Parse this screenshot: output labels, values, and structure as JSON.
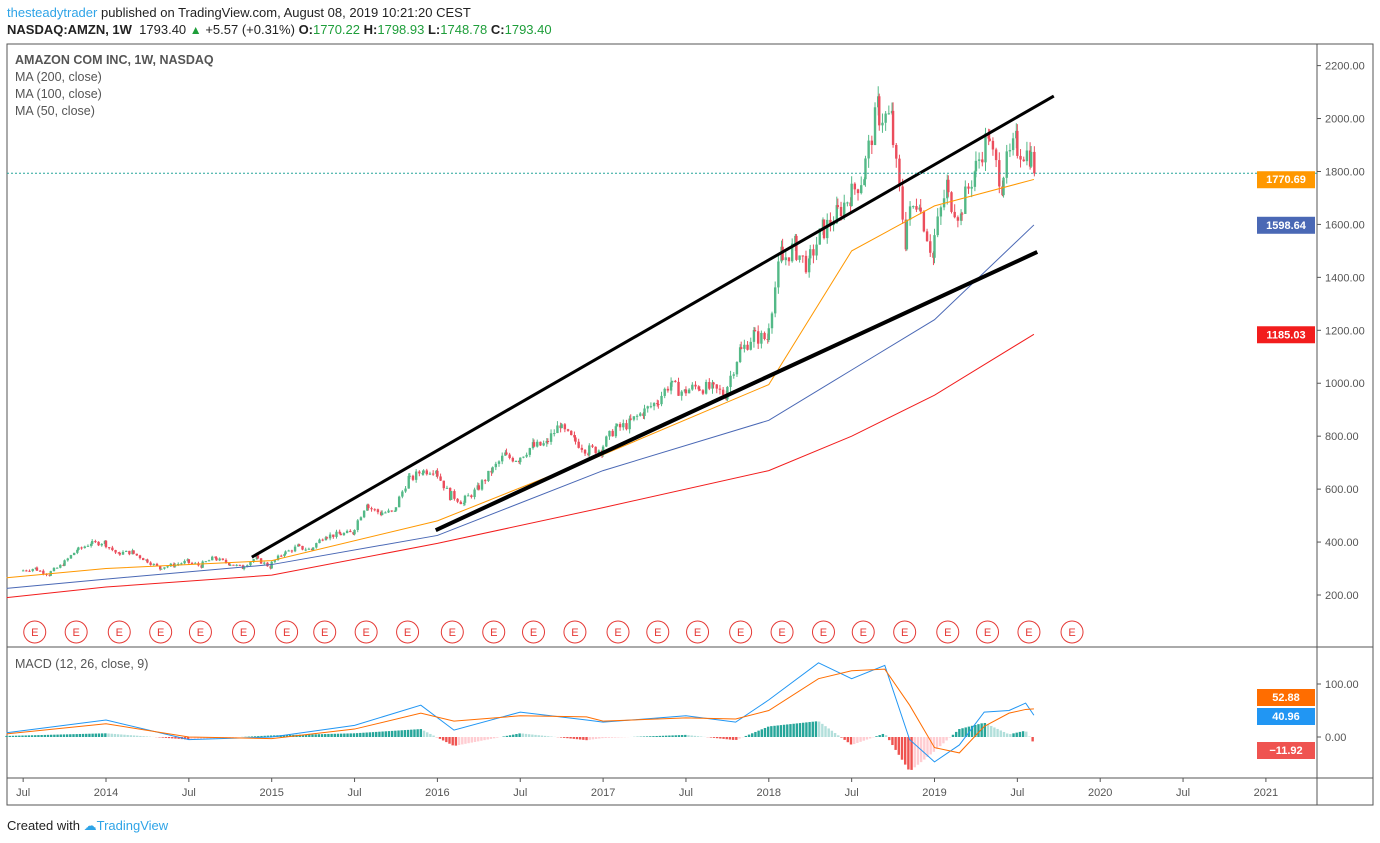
{
  "header": {
    "author": "thesteadytrader",
    "published": "published on TradingView.com, August 08, 2019 10:21:20 CEST",
    "symbol": "NASDAQ:AMZN, 1W",
    "last": "1793.40",
    "change": "+5.57 (+0.31%)",
    "o_label": "O:",
    "o": "1770.22",
    "h_label": "H:",
    "h": "1798.93",
    "l_label": "L:",
    "l": "1748.78",
    "c_label": "C:",
    "c": "1793.40"
  },
  "legend": {
    "title": "AMAZON COM INC, 1W, NASDAQ",
    "ma200": "MA (200, close)",
    "ma100": "MA (100, close)",
    "ma50": "MA (50, close)",
    "macd": "MACD (12, 26, close, 9)"
  },
  "footer": {
    "created": "Created with",
    "brand": "TradingView"
  },
  "colors": {
    "up": "#53b987",
    "down": "#eb4d5c",
    "ma50": "#ff9800",
    "ma100": "#4a68b5",
    "ma200": "#f21d1d",
    "macd": "#2196f3",
    "signal": "#ff6d00",
    "hist_up": "#26a69a",
    "hist_down": "#ef5350"
  },
  "chart_data": {
    "type": "candlestick",
    "price_ticks": [
      "2200.00",
      "2000.00",
      "1800.00",
      "1600.00",
      "1400.00",
      "1200.00",
      "1000.00",
      "800.00",
      "600.00",
      "400.00",
      "200.00"
    ],
    "price_tick_values": [
      2200,
      2000,
      1800,
      1600,
      1400,
      1200,
      1000,
      800,
      600,
      400,
      200
    ],
    "time_ticks": [
      "Jul",
      "2014",
      "Jul",
      "2015",
      "Jul",
      "2016",
      "Jul",
      "2017",
      "Jul",
      "2018",
      "Jul",
      "2019",
      "Jul",
      "2020",
      "Jul",
      "2021"
    ],
    "time_tick_years": [
      2013.5,
      2014,
      2014.5,
      2015,
      2015.5,
      2016,
      2016.5,
      2017,
      2017.5,
      2018,
      2018.5,
      2019,
      2019.5,
      2020,
      2020.5,
      2021
    ],
    "monthly_start": 2013.5,
    "monthly_closes": [
      300,
      280,
      312,
      364,
      393,
      399,
      358,
      362,
      336,
      304,
      312,
      325,
      312,
      339,
      322,
      305,
      338,
      310,
      354,
      380,
      372,
      421,
      429,
      434,
      536,
      512,
      512,
      626,
      665,
      676,
      587,
      552,
      594,
      659,
      722,
      715,
      758,
      769,
      837,
      789,
      750,
      750,
      823,
      845,
      886,
      925,
      994,
      968,
      987,
      980,
      961,
      1105,
      1176,
      1169,
      1450,
      1512,
      1447,
      1566,
      1629,
      1700,
      1777,
      2012,
      2003,
      1598,
      1690,
      1502,
      1718,
      1640,
      1780,
      1926,
      1775,
      1894,
      1867,
      1793
    ],
    "ma_years": [
      2013.4,
      2014,
      2015,
      2016,
      2017,
      2018,
      2018.5,
      2019,
      2019.6
    ],
    "ma50": [
      265,
      300,
      330,
      480,
      730,
      995,
      1500,
      1670,
      1770
    ],
    "ma100": [
      225,
      260,
      315,
      425,
      670,
      860,
      1050,
      1240,
      1598
    ],
    "ma200": [
      190,
      230,
      275,
      395,
      530,
      670,
      800,
      955,
      1185
    ],
    "labels": {
      "ma50": "1770.69",
      "ma100": "1598.64",
      "ma200": "1185.03"
    },
    "trendlines": [
      {
        "from": [
          2014.88,
          343
        ],
        "to": [
          2019.72,
          2085
        ]
      },
      {
        "from": [
          2015.99,
          445
        ],
        "to": [
          2019.62,
          1496
        ]
      }
    ],
    "earnings_label": "E",
    "earnings_years": [
      2013.57,
      2013.82,
      2014.08,
      2014.33,
      2014.57,
      2014.83,
      2015.09,
      2015.32,
      2015.57,
      2015.82,
      2016.09,
      2016.34,
      2016.58,
      2016.83,
      2017.09,
      2017.33,
      2017.57,
      2017.83,
      2018.08,
      2018.33,
      2018.57,
      2018.82,
      2019.08,
      2019.32,
      2019.57,
      2019.83
    ],
    "macd": {
      "ticks": [
        "100.00",
        "0.00"
      ],
      "tick_values": [
        100,
        0
      ],
      "years": [
        2013.4,
        2014,
        2014.5,
        2015,
        2015.5,
        2015.9,
        2016.1,
        2016.5,
        2016.9,
        2017,
        2017.5,
        2017.8,
        2018,
        2018.3,
        2018.5,
        2018.7,
        2018.85,
        2019,
        2019.15,
        2019.3,
        2019.45,
        2019.55,
        2019.6
      ],
      "macd": [
        8,
        32,
        -5,
        0,
        22,
        60,
        13,
        47,
        32,
        28,
        40,
        28,
        70,
        140,
        110,
        135,
        -5,
        -47,
        -15,
        47,
        50,
        64,
        41
      ],
      "signal": [
        6,
        25,
        0,
        -3,
        15,
        45,
        30,
        40,
        38,
        30,
        36,
        34,
        50,
        110,
        125,
        128,
        60,
        -20,
        -30,
        20,
        45,
        52,
        53
      ],
      "labels": {
        "signal": "52.88",
        "macd": "40.96",
        "hist": "−11.92"
      }
    }
  }
}
